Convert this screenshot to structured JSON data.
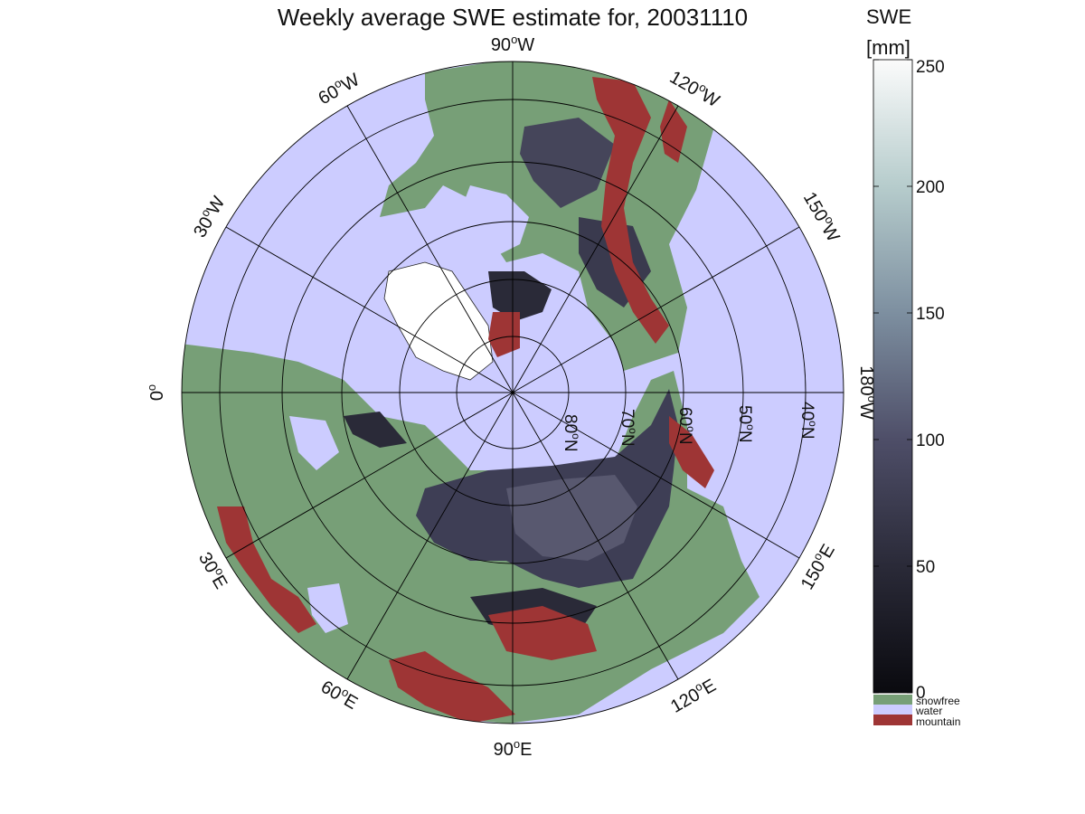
{
  "title": "Weekly average SWE estimate for, 20031110",
  "colorbar": {
    "title": "SWE",
    "unit": "[mm]",
    "min": 0,
    "max": 250,
    "ticks": [
      "0",
      "50",
      "100",
      "150",
      "200",
      "250"
    ],
    "categories": [
      {
        "label": "snowfree",
        "color": "#779f77"
      },
      {
        "label": "water",
        "color": "#ccccff"
      },
      {
        "label": "mountain",
        "color": "#9e3535"
      }
    ]
  },
  "map": {
    "projection": "north polar stereographic",
    "ocean_color": "#ccccff",
    "land_color": "#779f77",
    "mountain_color": "#9e3535",
    "longitude_labels": [
      "90",
      "120",
      "150",
      "180",
      "150",
      "120",
      "90",
      "60",
      "30",
      "0",
      "30",
      "60"
    ],
    "longitude_suffix": [
      "W",
      "W",
      "W",
      "W",
      "E",
      "E",
      "E",
      "E",
      "E",
      "",
      "W",
      "W"
    ],
    "latitude_labels": [
      "80",
      "70",
      "60",
      "50",
      "40"
    ],
    "latitude_suffix": "N"
  }
}
